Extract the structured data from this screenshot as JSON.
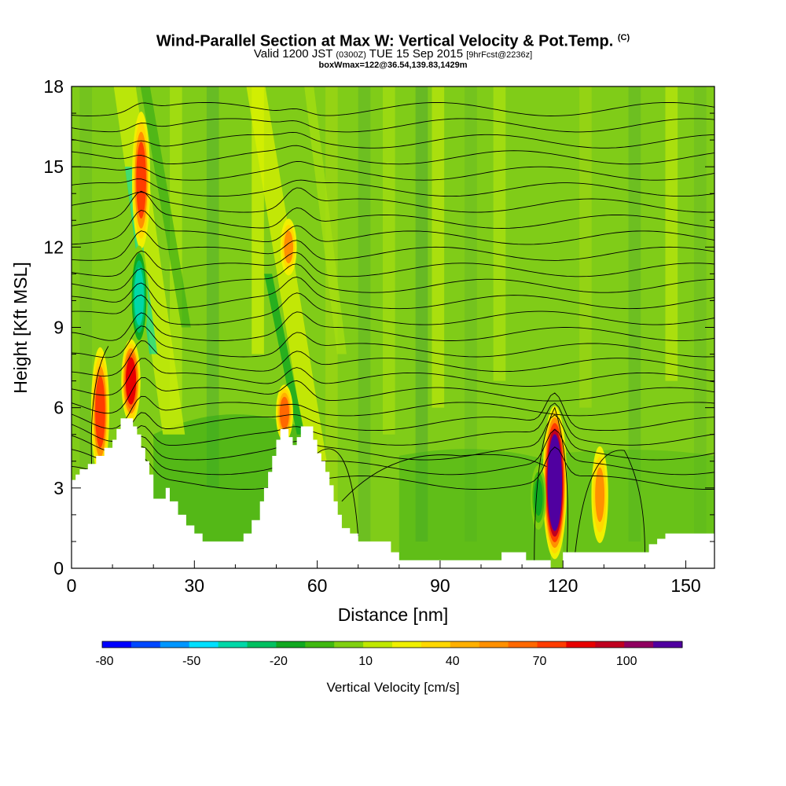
{
  "chart_data": {
    "type": "heatmap",
    "title": "Wind-Parallel Section at Max W: Vertical Velocity & Pot.Temp.",
    "title_mark": "(C)",
    "subtitle_main": "Valid 1200 JST",
    "subtitle_utc": "(0300Z)",
    "subtitle_date": "TUE 15 Sep 2015",
    "subtitle_fcst": "[9hrFcst@2236z]",
    "subsubtitle": "boxWmax=122@36.54,139.83,1429m",
    "xlabel": "Distance [nm]",
    "ylabel": "Height [Kft MSL]",
    "xlim": [
      0,
      157
    ],
    "ylim": [
      0,
      18
    ],
    "x_ticks": [
      "0",
      "30",
      "60",
      "90",
      "120",
      "150"
    ],
    "y_ticks": [
      "0",
      "3",
      "6",
      "9",
      "12",
      "15",
      "18"
    ],
    "x_tick_values": [
      0,
      30,
      60,
      90,
      120,
      150
    ],
    "y_tick_values": [
      0,
      3,
      6,
      9,
      12,
      15,
      18
    ],
    "colorbar": {
      "label": "Vertical Velocity [cm/s]",
      "tick_labels": [
        "-80",
        "-50",
        "-20",
        "10",
        "40",
        "70",
        "100"
      ],
      "colors": [
        "#0000ff",
        "#0048ff",
        "#0096ff",
        "#00e0ff",
        "#00d8a8",
        "#00c060",
        "#10a820",
        "#40b810",
        "#80d010",
        "#c0e800",
        "#f0f000",
        "#ffd800",
        "#ffb000",
        "#ff9000",
        "#ff6800",
        "#ff3c00",
        "#e80000",
        "#c00020",
        "#900060",
        "#5000a0"
      ]
    },
    "features": [
      {
        "name": "updraft",
        "x": 7,
        "y_bottom": 3.5,
        "y_top": 8.2,
        "w": 60
      },
      {
        "name": "updraft",
        "x": 14.5,
        "y_bottom": 5.5,
        "y_top": 8.5,
        "w": 70
      },
      {
        "name": "updraft",
        "x": 17,
        "y_bottom": 12,
        "y_top": 17,
        "w": 60
      },
      {
        "name": "downdraft",
        "x": 16.5,
        "y_bottom": 8.3,
        "y_top": 12,
        "w": -50
      },
      {
        "name": "updraft",
        "x": 52,
        "y_bottom": 4.8,
        "y_top": 6.8,
        "w": 50
      },
      {
        "name": "updraft",
        "x": 53,
        "y_bottom": 11,
        "y_top": 13,
        "w": 40
      },
      {
        "name": "updraft",
        "x": 118,
        "y_bottom": 0.4,
        "y_top": 6,
        "w": 122
      },
      {
        "name": "updraft",
        "x": 129,
        "y_bottom": 1,
        "y_top": 4.5,
        "w": 45
      },
      {
        "name": "downdraft",
        "x": 114,
        "y_bottom": 1.5,
        "y_top": 3.8,
        "w": -30
      }
    ],
    "terrain_nm_kft": [
      [
        0,
        3.3
      ],
      [
        1,
        3.5
      ],
      [
        2,
        3.7
      ],
      [
        4,
        3.9
      ],
      [
        6,
        4.2
      ],
      [
        8,
        4.5
      ],
      [
        10,
        4.8
      ],
      [
        11,
        5.2
      ],
      [
        12,
        5.6
      ],
      [
        14,
        5.6
      ],
      [
        15,
        5.3
      ],
      [
        16,
        5.0
      ],
      [
        17,
        4.5
      ],
      [
        18,
        4.0
      ],
      [
        19,
        3.5
      ],
      [
        20,
        2.6
      ],
      [
        22,
        2.6
      ],
      [
        23,
        3.0
      ],
      [
        24,
        2.5
      ],
      [
        26,
        2.0
      ],
      [
        28,
        1.6
      ],
      [
        30,
        1.3
      ],
      [
        32,
        1.0
      ],
      [
        40,
        1.0
      ],
      [
        42,
        1.3
      ],
      [
        44,
        1.8
      ],
      [
        46,
        2.5
      ],
      [
        47,
        3.0
      ],
      [
        48,
        3.6
      ],
      [
        49,
        4.2
      ],
      [
        50,
        4.8
      ],
      [
        51,
        5.2
      ],
      [
        52,
        5.2
      ],
      [
        53,
        4.9
      ],
      [
        54,
        4.6
      ],
      [
        55,
        4.9
      ],
      [
        56,
        5.3
      ],
      [
        58,
        5.3
      ],
      [
        59,
        4.8
      ],
      [
        60,
        4.3
      ],
      [
        61,
        4.0
      ],
      [
        62,
        3.6
      ],
      [
        63,
        3.1
      ],
      [
        64,
        2.5
      ],
      [
        65,
        2.0
      ],
      [
        66,
        1.5
      ],
      [
        68,
        1.3
      ],
      [
        70,
        1.0
      ],
      [
        72,
        1.0
      ],
      [
        76,
        1.0
      ],
      [
        78,
        0.6
      ],
      [
        80,
        0.3
      ],
      [
        104,
        0.3
      ],
      [
        105,
        0.6
      ],
      [
        110,
        0.6
      ],
      [
        111,
        0.3
      ],
      [
        116,
        0.3
      ],
      [
        117,
        0.0
      ],
      [
        118,
        0.0
      ],
      [
        120,
        0.6
      ],
      [
        140,
        0.6
      ],
      [
        141,
        0.9
      ],
      [
        143,
        1.1
      ],
      [
        145,
        1.3
      ],
      [
        157,
        1.3
      ]
    ]
  }
}
